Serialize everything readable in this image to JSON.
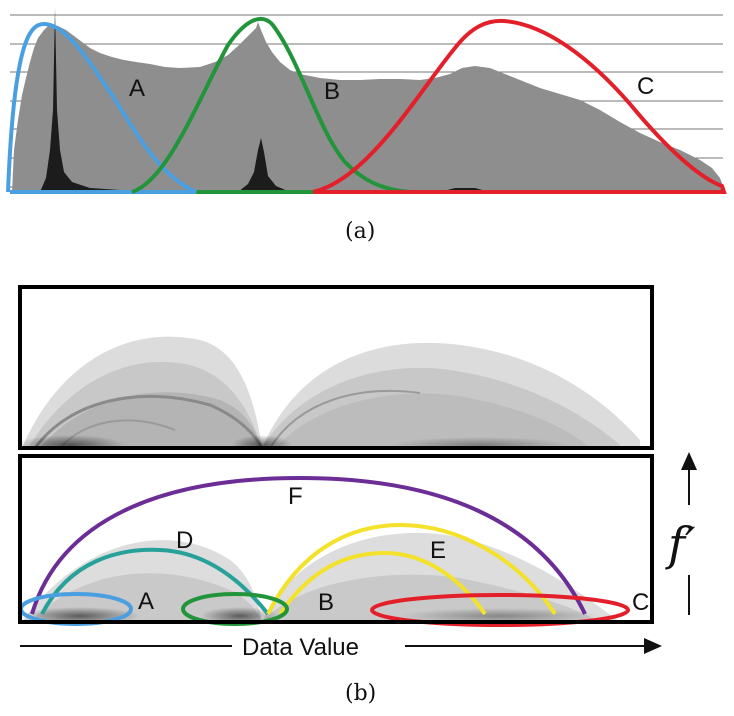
{
  "panel_a": {
    "caption": "(a)",
    "labels": {
      "A": "A",
      "B": "B",
      "C": "C"
    }
  },
  "panel_b": {
    "caption": "(b)",
    "labels": {
      "A": "A",
      "B": "B",
      "C": "C",
      "D": "D",
      "E": "E",
      "F": "F"
    },
    "x_axis_label": "Data Value",
    "y_axis_label": "f′"
  },
  "colors": {
    "blue": "#4a9fe0",
    "green": "#22953a",
    "red": "#e3202a",
    "teal": "#27a19a",
    "yellow": "#f3e12a",
    "purple": "#6c2d96",
    "histogram": "#8e8e8e",
    "spike": "#1c1c1c"
  }
}
